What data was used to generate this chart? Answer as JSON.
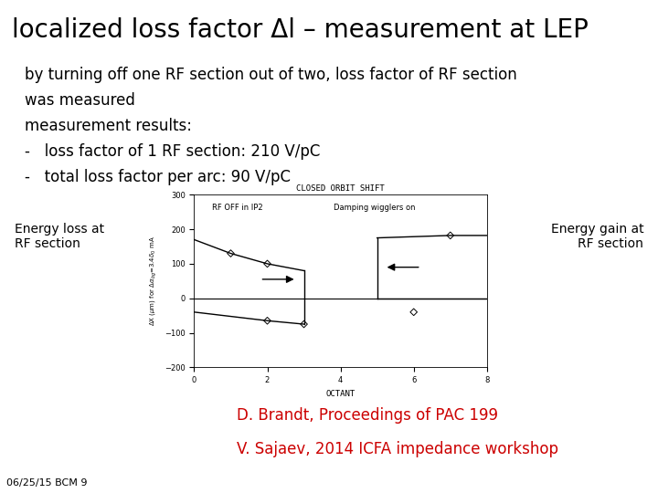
{
  "title": "localized loss factor Δl – measurement at LEP",
  "title_fontsize": 20,
  "body_lines": [
    "by turning off one RF section out of two, loss factor of RF section",
    "was measured",
    "measurement results:",
    "-   loss factor of 1 RF section: 210 V/pC",
    "-   total loss factor per arc: 90 V/pC"
  ],
  "body_fontsize": 12,
  "ref1": "D. Brandt, Proceedings of PAC 199",
  "ref2": "V. Sajaev, 2014 ICFA impedance workshop",
  "ref_color": "#cc0000",
  "ref_fontsize": 12,
  "footer": "06/25/15 BCM 9",
  "footer_fontsize": 8,
  "bg_color": "#ffffff",
  "label_left": "Energy loss at\nRF section",
  "label_right": "Energy gain at\nRF section",
  "label_fontsize": 10,
  "plot_title": "CLOSED ORBIT SHIFT",
  "plot_xlabel": "OCTANT",
  "plot_ylim": [
    -200,
    300
  ],
  "plot_xlim": [
    0,
    8
  ],
  "plot_yticks": [
    -200,
    -100,
    0,
    100,
    200,
    300
  ],
  "plot_xticks": [
    0,
    2,
    4,
    6,
    8
  ],
  "plot_annotation1": "RF OFF in IP2",
  "plot_annotation2": "Damping wigglers on"
}
